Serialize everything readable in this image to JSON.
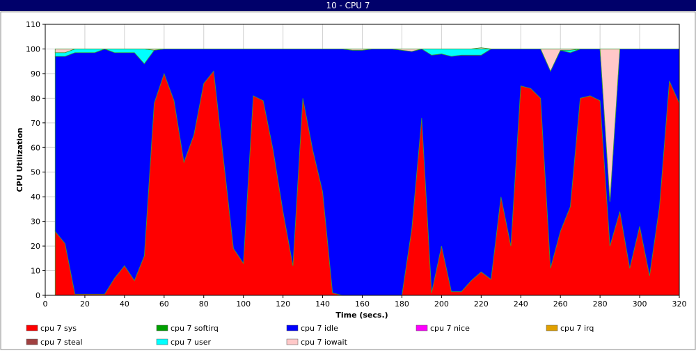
{
  "window": {
    "title": "10 - CPU 7"
  },
  "chart_data": {
    "type": "area",
    "stacked": true,
    "xlabel": "Time (secs.)",
    "ylabel": "CPU Utilization",
    "xlim": [
      0,
      320
    ],
    "ylim": [
      0,
      110
    ],
    "x_ticks": [
      0,
      20,
      40,
      60,
      80,
      100,
      120,
      140,
      160,
      180,
      200,
      220,
      240,
      260,
      280,
      300,
      320
    ],
    "y_ticks": [
      0,
      10,
      20,
      30,
      40,
      50,
      60,
      70,
      80,
      90,
      100,
      110
    ],
    "grid": true,
    "legend_position": "bottom",
    "x": [
      5,
      10,
      15,
      20,
      25,
      30,
      35,
      40,
      45,
      50,
      55,
      60,
      65,
      70,
      75,
      80,
      85,
      90,
      95,
      100,
      105,
      110,
      115,
      120,
      125,
      130,
      135,
      140,
      145,
      150,
      155,
      160,
      165,
      170,
      175,
      180,
      185,
      190,
      195,
      200,
      205,
      210,
      215,
      220,
      225,
      230,
      235,
      240,
      245,
      250,
      255,
      260,
      265,
      270,
      275,
      280,
      285,
      290,
      295,
      300,
      305,
      310,
      315,
      320
    ],
    "series": [
      {
        "name": "cpu 7 sys",
        "color": "#ff0000",
        "values": [
          26,
          21,
          0.5,
          0.5,
          0.5,
          0.5,
          7,
          12,
          6,
          16,
          78,
          90,
          79,
          54,
          65,
          86,
          91,
          55,
          19,
          13,
          81,
          79,
          59,
          34,
          12,
          80,
          59,
          42,
          1,
          0,
          0,
          0,
          0,
          0,
          0,
          0,
          27,
          72,
          1,
          20,
          1.5,
          1.5,
          6,
          9.5,
          6.5,
          40,
          20,
          85,
          84,
          80,
          11,
          26,
          36,
          80,
          81,
          79,
          20,
          34,
          11,
          28,
          8,
          36,
          87,
          78
        ]
      },
      {
        "name": "cpu 7 softirq",
        "color": "#00a000",
        "values": [
          0,
          0,
          0,
          0,
          0,
          0,
          0,
          0,
          0,
          0,
          0,
          0,
          0,
          0,
          0,
          0,
          0,
          0,
          0,
          0,
          0,
          0,
          0,
          0,
          0,
          0,
          0,
          0,
          0,
          0,
          0,
          0,
          0,
          0,
          0,
          0,
          0,
          0,
          0,
          0,
          0,
          0,
          0,
          0,
          0,
          0,
          0,
          0,
          0,
          0,
          0,
          0,
          0,
          0,
          0,
          0,
          0,
          0,
          0,
          0,
          0,
          0,
          0,
          0
        ]
      },
      {
        "name": "cpu 7 idle",
        "color": "#0000ff",
        "values": [
          71,
          76,
          98,
          98,
          98,
          99.5,
          91.5,
          86.5,
          92.5,
          78,
          21.5,
          10,
          21,
          46,
          35,
          14,
          9,
          45,
          81,
          87,
          19,
          21,
          41,
          66,
          88,
          20,
          41,
          58,
          99,
          100,
          99.5,
          99.5,
          100,
          100,
          100,
          99.5,
          72,
          28,
          96.5,
          78,
          95.5,
          96,
          91.5,
          88,
          93.5,
          60,
          80,
          15,
          16,
          20,
          80,
          73.5,
          62.5,
          20,
          19,
          21,
          18,
          66,
          89,
          72,
          92,
          64,
          13,
          22
        ]
      },
      {
        "name": "cpu 7 nice",
        "color": "#ff00ff",
        "values": [
          0,
          0,
          0,
          0,
          0,
          0,
          0,
          0,
          0,
          0,
          0,
          0,
          0,
          0,
          0,
          0,
          0,
          0,
          0,
          0,
          0,
          0,
          0,
          0,
          0,
          0,
          0,
          0,
          0,
          0,
          0,
          0,
          0,
          0,
          0,
          0,
          0,
          0,
          0,
          0,
          0,
          0,
          0,
          0,
          0,
          0,
          0,
          0,
          0,
          0,
          0,
          0,
          0,
          0,
          0,
          0,
          0,
          0,
          0,
          0,
          0,
          0,
          0,
          0
        ]
      },
      {
        "name": "cpu 7 irq",
        "color": "#e0a000",
        "values": [
          0,
          0,
          0,
          0,
          0,
          0,
          0,
          0,
          0,
          0,
          0,
          0,
          0,
          0,
          0,
          0,
          0,
          0,
          0,
          0,
          0,
          0,
          0,
          0,
          0,
          0,
          0,
          0,
          0,
          0,
          0,
          0,
          0,
          0,
          0,
          0,
          0,
          0,
          0,
          0,
          0,
          0,
          0,
          0,
          0,
          0,
          0,
          0,
          0,
          0,
          0,
          0,
          0,
          0,
          0,
          0,
          0,
          0,
          0,
          0,
          0,
          0,
          0,
          0
        ]
      },
      {
        "name": "cpu 7 steal",
        "color": "#a04040",
        "values": [
          0,
          0,
          0,
          0,
          0,
          0,
          0,
          0,
          0,
          0,
          0,
          0,
          0,
          0,
          0,
          0,
          0,
          0,
          0,
          0,
          0,
          0,
          0,
          0,
          0,
          0,
          0,
          0,
          0,
          0,
          0,
          0,
          0,
          0,
          0,
          0,
          0,
          0,
          0,
          0,
          0,
          0,
          0,
          0,
          0,
          0,
          0,
          0,
          0,
          0,
          0,
          0,
          0,
          0,
          0,
          0,
          0,
          0,
          0,
          0,
          0,
          0,
          0,
          0
        ]
      },
      {
        "name": "cpu 7 user",
        "color": "#00ffff",
        "values": [
          1.5,
          1.5,
          1.5,
          1.5,
          1.5,
          0,
          1.5,
          1.5,
          1.5,
          6,
          0,
          0,
          0,
          0,
          0,
          0,
          0,
          0,
          0,
          0,
          0,
          0,
          0,
          0,
          0,
          0,
          0,
          0,
          0,
          0,
          0,
          0,
          0,
          0,
          0,
          0,
          0,
          0,
          2.5,
          2,
          3,
          2.5,
          2.5,
          2.5,
          0,
          0,
          0,
          0,
          0,
          0,
          0,
          0,
          1,
          0,
          0,
          0,
          0,
          0,
          0,
          0,
          0,
          0,
          0,
          0
        ]
      },
      {
        "name": "cpu 7 iowait",
        "color": "#ffc8c8",
        "values": [
          1.5,
          1.5,
          0,
          0,
          0,
          0,
          0,
          0,
          0,
          0,
          0.5,
          0,
          0,
          0,
          0,
          0,
          0,
          0,
          0,
          0,
          0,
          0,
          0,
          0,
          0,
          0,
          0,
          0,
          0,
          0,
          0.5,
          0.5,
          0,
          0,
          0,
          0.5,
          1,
          0,
          0,
          0,
          0,
          0,
          0,
          0.5,
          0,
          0,
          0,
          0,
          0,
          0,
          9,
          0.5,
          0.5,
          0,
          0,
          0,
          62,
          0,
          0,
          0,
          0,
          0,
          0,
          0
        ]
      }
    ]
  }
}
